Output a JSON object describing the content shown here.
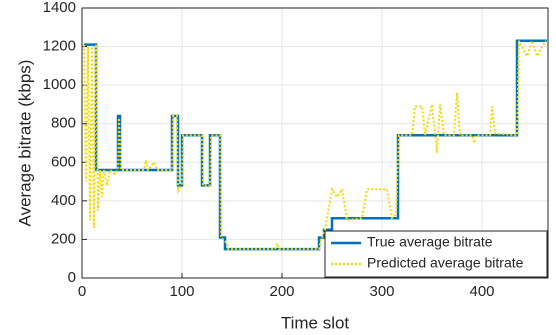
{
  "chart_data": {
    "type": "line",
    "xlabel": "Time slot",
    "ylabel": "Average bitrate (kbps)",
    "xlim": [
      0,
      466
    ],
    "ylim": [
      0,
      1400
    ],
    "xticks": [
      0,
      100,
      200,
      300,
      400
    ],
    "yticks": [
      0,
      200,
      400,
      600,
      800,
      1000,
      1200,
      1400
    ],
    "grid": true,
    "legend": "lower right",
    "series": [
      {
        "name": "True average bitrate",
        "color": "#0072bd",
        "style": "solid",
        "x": [
          2,
          14,
          14,
          36,
          36,
          38,
          38,
          90,
          90,
          96,
          96,
          100,
          100,
          120,
          120,
          128,
          128,
          138,
          138,
          143,
          143,
          237,
          237,
          242,
          242,
          250,
          250,
          316,
          316,
          435,
          435,
          465
        ],
        "values": [
          1210,
          1210,
          560,
          560,
          840,
          840,
          560,
          560,
          840,
          840,
          480,
          480,
          740,
          740,
          480,
          480,
          740,
          740,
          210,
          210,
          150,
          150,
          210,
          210,
          250,
          250,
          310,
          310,
          740,
          740,
          1230,
          1230
        ]
      },
      {
        "name": "Predicted average bitrate",
        "color": "#f5d90a",
        "style": "dotted",
        "x": [
          2,
          4,
          6,
          8,
          10,
          12,
          14,
          16,
          18,
          20,
          22,
          25,
          28,
          33,
          36,
          37,
          39,
          62,
          64,
          66,
          72,
          75,
          90,
          91,
          95,
          96,
          100,
          101,
          120,
          121,
          128,
          129,
          138,
          139,
          145,
          146,
          193,
          195,
          197,
          237,
          239,
          243,
          250,
          255,
          260,
          265,
          280,
          285,
          305,
          310,
          314,
          317,
          330,
          333,
          340,
          343,
          350,
          355,
          358,
          362,
          372,
          375,
          378,
          390,
          392,
          394,
          408,
          410,
          413,
          435,
          437,
          445,
          450,
          455,
          460,
          464
        ],
        "values": [
          1210,
          500,
          1200,
          300,
          1200,
          260,
          1210,
          350,
          560,
          420,
          560,
          480,
          560,
          540,
          560,
          830,
          560,
          560,
          610,
          560,
          600,
          560,
          560,
          840,
          840,
          450,
          480,
          740,
          740,
          480,
          480,
          740,
          740,
          210,
          180,
          150,
          150,
          180,
          150,
          150,
          200,
          250,
          460,
          420,
          460,
          300,
          310,
          460,
          460,
          310,
          330,
          740,
          740,
          890,
          890,
          740,
          900,
          650,
          900,
          740,
          740,
          960,
          740,
          740,
          700,
          740,
          740,
          890,
          750,
          740,
          1230,
          1150,
          1230,
          1150,
          1200,
          1230
        ]
      }
    ]
  }
}
